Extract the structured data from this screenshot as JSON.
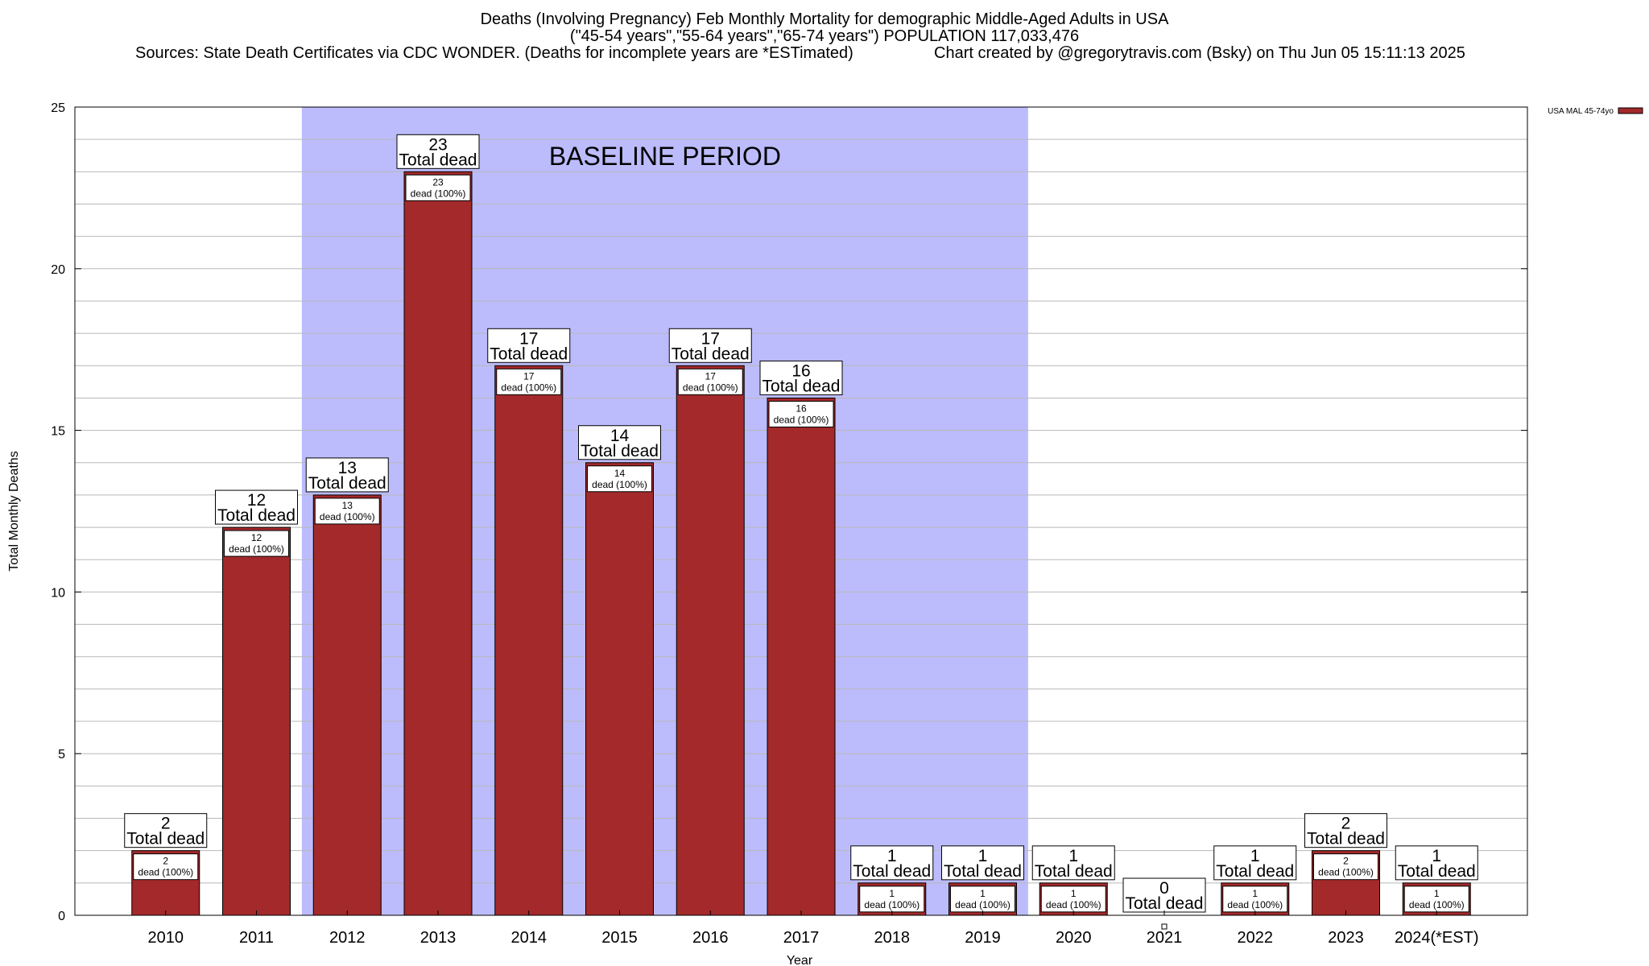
{
  "chart_data": {
    "type": "bar",
    "title": "Deaths (Involving Pregnancy) Feb Monthly Mortality for demographic Middle-Aged Adults in USA",
    "subtitle": "(\"45-54 years\",\"55-64 years\",\"65-74 years\") POPULATION 117,033,476",
    "sources": "Sources: State Death Certificates via CDC WONDER. (Deaths for incomplete years are *ESTimated)",
    "credit": "Chart created by @gregorytravis.com (Bsky) on Thu Jun 05 15:11:13 2025",
    "xlabel": "Year",
    "ylabel": "Total Monthly Deaths",
    "ylim": [
      0,
      25
    ],
    "yticks": [
      "0",
      "5",
      "10",
      "15",
      "20",
      "25"
    ],
    "grid": true,
    "legend_position": "top-right",
    "categories": [
      "2010",
      "2011",
      "2012",
      "2013",
      "2014",
      "2015",
      "2016",
      "2017",
      "2018",
      "2019",
      "2020",
      "2021",
      "2022",
      "2023",
      "2024(*EST)"
    ],
    "series": [
      {
        "name": "USA MAL 45-74yo",
        "color": "#a3292b",
        "values": [
          2,
          12,
          13,
          23,
          17,
          14,
          17,
          16,
          1,
          1,
          1,
          0,
          1,
          2,
          1
        ]
      }
    ],
    "total_label_values": [
      "2",
      "12",
      "13",
      "23",
      "17",
      "14",
      "17",
      "16",
      "1",
      "1",
      "1",
      "0",
      "1",
      "2",
      "1"
    ],
    "total_label_text": "Total dead",
    "inner_label_values": [
      "2",
      "12",
      "13",
      "23",
      "17",
      "14",
      "17",
      "16",
      "1",
      "1",
      "1",
      "",
      "1",
      "2",
      "1"
    ],
    "inner_label_text": "dead (100%)",
    "baseline_period": {
      "label": "BASELINE PERIOD",
      "start": "2012",
      "end": "2019",
      "color": "#bcbcfc"
    }
  }
}
